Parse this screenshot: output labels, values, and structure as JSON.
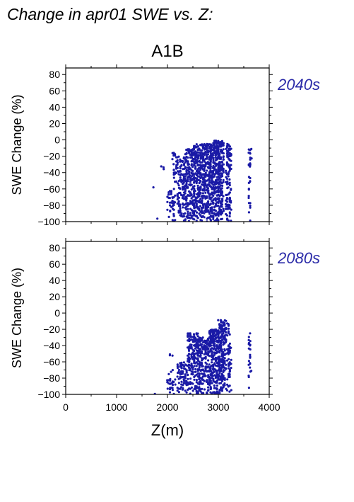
{
  "figure": {
    "title": "Change in apr01 SWE vs. Z:",
    "scenario": "A1B",
    "xlabel": "Z(m)",
    "point_color": "#1a1aa6",
    "label_color": "#2a2aa8"
  },
  "chart_data": [
    {
      "type": "scatter",
      "period": "2040s",
      "ylabel": "SWE Change (%)",
      "xlim": [
        0,
        4000
      ],
      "ylim": [
        -100,
        88
      ],
      "xticks": [
        0,
        1000,
        2000,
        3000,
        4000
      ],
      "yticks": [
        -100,
        -80,
        -60,
        -40,
        -20,
        0,
        20,
        40,
        60,
        80
      ],
      "grid": false,
      "clusters": [
        {
          "x": [
            1700,
            1740
          ],
          "y": [
            -65,
            -55
          ],
          "density": 0.3
        },
        {
          "x": [
            1750,
            1800
          ],
          "y": [
            -100,
            -95
          ],
          "density": 0.3
        },
        {
          "x": [
            1850,
            1950
          ],
          "y": [
            -40,
            -30
          ],
          "density": 0.25
        },
        {
          "x": [
            2000,
            2150
          ],
          "y": [
            -100,
            -60
          ],
          "density": 0.6
        },
        {
          "x": [
            2100,
            2200
          ],
          "y": [
            -60,
            -15
          ],
          "density": 0.5
        },
        {
          "x": [
            2200,
            2350
          ],
          "y": [
            -100,
            -20
          ],
          "density": 0.9
        },
        {
          "x": [
            2350,
            2500
          ],
          "y": [
            -100,
            -10
          ],
          "density": 1.0
        },
        {
          "x": [
            2500,
            2700
          ],
          "y": [
            -100,
            -5
          ],
          "density": 1.3
        },
        {
          "x": [
            2700,
            2900
          ],
          "y": [
            -100,
            -5
          ],
          "density": 1.4
        },
        {
          "x": [
            2900,
            3100
          ],
          "y": [
            -100,
            -1
          ],
          "density": 1.6
        },
        {
          "x": [
            3150,
            3250
          ],
          "y": [
            -100,
            -5
          ],
          "density": 1.1
        },
        {
          "x": [
            3600,
            3640
          ],
          "y": [
            -100,
            -8
          ],
          "density": 0.7
        }
      ]
    },
    {
      "type": "scatter",
      "period": "2080s",
      "ylabel": "SWE Change (%)",
      "xlim": [
        0,
        4000
      ],
      "ylim": [
        -100,
        88
      ],
      "xticks": [
        0,
        1000,
        2000,
        3000,
        4000
      ],
      "yticks": [
        -100,
        -80,
        -60,
        -40,
        -20,
        0,
        20,
        40,
        60,
        80
      ],
      "grid": false,
      "clusters": [
        {
          "x": [
            1700,
            1850
          ],
          "y": [
            -100,
            -99
          ],
          "density": 0.3
        },
        {
          "x": [
            2000,
            2150
          ],
          "y": [
            -100,
            -70
          ],
          "density": 0.5
        },
        {
          "x": [
            2050,
            2150
          ],
          "y": [
            -55,
            -45
          ],
          "density": 0.3
        },
        {
          "x": [
            2200,
            2400
          ],
          "y": [
            -100,
            -60
          ],
          "density": 0.9
        },
        {
          "x": [
            2400,
            2600
          ],
          "y": [
            -100,
            -25
          ],
          "density": 1.0
        },
        {
          "x": [
            2600,
            2800
          ],
          "y": [
            -100,
            -30
          ],
          "density": 1.2
        },
        {
          "x": [
            2800,
            3000
          ],
          "y": [
            -100,
            -20
          ],
          "density": 1.4
        },
        {
          "x": [
            3000,
            3150
          ],
          "y": [
            -100,
            -8
          ],
          "density": 1.5
        },
        {
          "x": [
            3180,
            3240
          ],
          "y": [
            -100,
            -12
          ],
          "density": 1.0
        },
        {
          "x": [
            3600,
            3640
          ],
          "y": [
            -100,
            -25
          ],
          "density": 0.7
        }
      ]
    }
  ]
}
